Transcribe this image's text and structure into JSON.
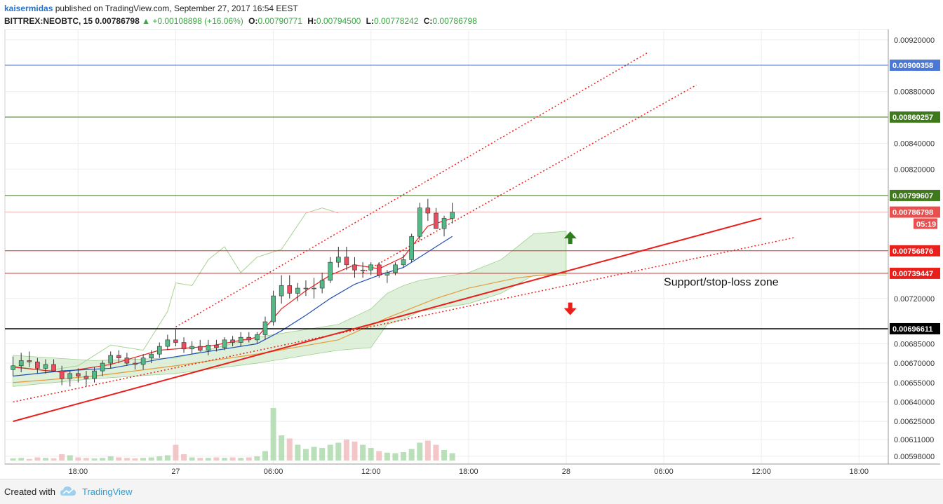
{
  "header": {
    "author": "kaisermidas",
    "published_text": "published on TradingView.com, September 27, 2017 16:54 EEST",
    "symbol": "BITTREX:NEOBTC, 15",
    "last": "0.00786798",
    "change": "+0.00108898 (+16.06%)",
    "o_label": "O:",
    "o": "0.00790771",
    "h_label": "H:",
    "h": "0.00794500",
    "l_label": "L:",
    "l": "0.00778242",
    "c_label": "C:",
    "c": "0.00786798",
    "arrow_icon": "triangle-up-icon"
  },
  "footer": {
    "created_with": "Created with",
    "brand": "TradingView",
    "logo_icon": "tradingview-cloud-icon"
  },
  "chart_data": {
    "type": "candlestick",
    "symbol": "BITTREX:NEOBTC",
    "interval": "15",
    "ylim": [
      0.00592,
      0.00928
    ],
    "x_ticks": [
      "18:00",
      "27",
      "06:00",
      "12:00",
      "18:00",
      "28",
      "06:00",
      "12:00",
      "18:00"
    ],
    "x_tick_values": [
      0.8,
      2.0,
      3.2,
      4.4,
      5.6,
      6.8,
      8.0,
      9.2,
      10.4
    ],
    "y_ticks": [
      "0.00920000",
      "0.00880000",
      "0.00840000",
      "0.00820000",
      "0.00720000",
      "0.00685000",
      "0.00670000",
      "0.00655000",
      "0.00640000",
      "0.00625000",
      "0.00611000",
      "0.00598000"
    ],
    "y_tick_values": [
      0.0092,
      0.0088,
      0.0084,
      0.0082,
      0.0072,
      0.00685,
      0.0067,
      0.00655,
      0.0064,
      0.00625,
      0.00611,
      0.00598
    ],
    "last_price": {
      "label": "0.00786798",
      "value": 0.00786798,
      "countdown": "05:19",
      "color": "#e8504f"
    },
    "horizontal_lines": [
      {
        "label": "0.00900358",
        "value": 0.00900358,
        "color": "#4a78d4"
      },
      {
        "label": "0.00860257",
        "value": 0.00860257,
        "color": "#3e7a1c"
      },
      {
        "label": "0.00799607",
        "value": 0.00799607,
        "color": "#3e7a1c"
      },
      {
        "label": "0.00756876",
        "value": 0.00756876,
        "color": "#e8201c"
      },
      {
        "label": "0.00739447",
        "value": 0.00739447,
        "color": "#e8201c"
      },
      {
        "label": "0.00696611",
        "value": 0.00696611,
        "color": "#000000"
      }
    ],
    "annotations": [
      {
        "text": "Support/stop-loss zone",
        "x": 8.0,
        "y": 0.0073
      }
    ],
    "arrows": [
      {
        "direction": "up",
        "x": 6.85,
        "y": 0.00767,
        "color": "#2e7d1e"
      },
      {
        "direction": "down",
        "x": 6.85,
        "y": 0.00712,
        "color": "#e8201c"
      }
    ],
    "trend_lines": [
      {
        "style": "solid",
        "color": "#e8201c",
        "x": [
          0.0,
          9.2
        ],
        "y": [
          0.00625,
          0.00782
        ]
      },
      {
        "style": "dotted",
        "color": "#e8201c",
        "x": [
          0.0,
          9.6
        ],
        "y": [
          0.0064,
          0.00767
        ]
      },
      {
        "style": "dotted",
        "color": "#e8201c",
        "x": [
          2.0,
          7.8
        ],
        "y": [
          0.00698,
          0.0091
        ]
      },
      {
        "style": "dotted",
        "color": "#e8201c",
        "x": [
          4.3,
          8.4
        ],
        "y": [
          0.0074,
          0.00885
        ]
      }
    ],
    "candles": {
      "x": [
        0.0,
        0.1,
        0.2,
        0.3,
        0.4,
        0.5,
        0.6,
        0.7,
        0.8,
        0.9,
        1.0,
        1.1,
        1.2,
        1.3,
        1.4,
        1.5,
        1.6,
        1.7,
        1.8,
        1.9,
        2.0,
        2.1,
        2.2,
        2.3,
        2.4,
        2.5,
        2.6,
        2.7,
        2.8,
        2.9,
        3.0,
        3.1,
        3.2,
        3.3,
        3.4,
        3.5,
        3.6,
        3.7,
        3.8,
        3.9,
        4.0,
        4.1,
        4.2,
        4.3,
        4.4,
        4.5,
        4.6,
        4.7,
        4.8,
        4.9,
        5.0,
        5.1,
        5.2,
        5.3,
        5.4
      ],
      "open": [
        0.00665,
        0.00668,
        0.00672,
        0.00671,
        0.00666,
        0.00669,
        0.00664,
        0.00658,
        0.00662,
        0.0066,
        0.00658,
        0.00664,
        0.0067,
        0.00676,
        0.00674,
        0.0067,
        0.00669,
        0.00674,
        0.00677,
        0.00683,
        0.00688,
        0.00686,
        0.00681,
        0.00683,
        0.0068,
        0.00684,
        0.00682,
        0.00688,
        0.00686,
        0.0069,
        0.00688,
        0.00692,
        0.00702,
        0.00722,
        0.0073,
        0.00724,
        0.00728,
        0.00728,
        0.00728,
        0.00734,
        0.00748,
        0.00752,
        0.00746,
        0.00742,
        0.00742,
        0.00746,
        0.00738,
        0.0074,
        0.00746,
        0.0075,
        0.00768,
        0.0079,
        0.00786,
        0.00774,
        0.00782
      ],
      "high": [
        0.00675,
        0.00678,
        0.00679,
        0.00674,
        0.00673,
        0.00673,
        0.00668,
        0.00664,
        0.00666,
        0.00664,
        0.00667,
        0.00672,
        0.00679,
        0.0068,
        0.00678,
        0.00674,
        0.00677,
        0.0068,
        0.00686,
        0.00692,
        0.00696,
        0.0069,
        0.00687,
        0.00688,
        0.00688,
        0.00688,
        0.0069,
        0.00691,
        0.00694,
        0.00694,
        0.00694,
        0.00706,
        0.00726,
        0.00738,
        0.00738,
        0.00732,
        0.00734,
        0.00736,
        0.0074,
        0.00752,
        0.0076,
        0.0076,
        0.00752,
        0.00748,
        0.00748,
        0.00748,
        0.00742,
        0.00748,
        0.00754,
        0.0077,
        0.00794,
        0.00797,
        0.0079,
        0.00784,
        0.00794
      ],
      "low": [
        0.0066,
        0.00663,
        0.00667,
        0.00662,
        0.00662,
        0.00663,
        0.00653,
        0.00652,
        0.00655,
        0.00652,
        0.00655,
        0.0066,
        0.00666,
        0.0067,
        0.00668,
        0.00665,
        0.00665,
        0.0067,
        0.00674,
        0.0068,
        0.00683,
        0.00678,
        0.00677,
        0.00679,
        0.00676,
        0.00679,
        0.0068,
        0.00683,
        0.00683,
        0.00686,
        0.00685,
        0.00688,
        0.00699,
        0.00716,
        0.0072,
        0.00718,
        0.00722,
        0.0072,
        0.00724,
        0.00732,
        0.00744,
        0.00742,
        0.00736,
        0.00736,
        0.00738,
        0.00736,
        0.00732,
        0.00738,
        0.00744,
        0.00748,
        0.00765,
        0.0078,
        0.00774,
        0.00768,
        0.00778
      ],
      "close": [
        0.00668,
        0.00672,
        0.00671,
        0.00666,
        0.00669,
        0.00664,
        0.00658,
        0.00662,
        0.0066,
        0.00658,
        0.00664,
        0.0067,
        0.00676,
        0.00674,
        0.0067,
        0.00669,
        0.00674,
        0.00677,
        0.00683,
        0.00688,
        0.00686,
        0.00681,
        0.00683,
        0.0068,
        0.00684,
        0.00682,
        0.00688,
        0.00686,
        0.0069,
        0.00688,
        0.00692,
        0.00702,
        0.00722,
        0.0073,
        0.00724,
        0.00728,
        0.00728,
        0.00728,
        0.00734,
        0.00748,
        0.00752,
        0.00746,
        0.00742,
        0.00742,
        0.00746,
        0.00738,
        0.0074,
        0.00746,
        0.0075,
        0.00768,
        0.0079,
        0.00786,
        0.00774,
        0.00782,
        0.00786798
      ]
    },
    "volume": {
      "max": 100,
      "values": [
        4,
        5,
        3,
        6,
        5,
        4,
        12,
        10,
        6,
        5,
        4,
        5,
        8,
        6,
        5,
        4,
        5,
        6,
        8,
        10,
        30,
        12,
        6,
        5,
        5,
        6,
        5,
        6,
        5,
        6,
        8,
        18,
        100,
        48,
        42,
        30,
        22,
        26,
        24,
        30,
        34,
        40,
        36,
        30,
        24,
        18,
        15,
        14,
        16,
        22,
        34,
        38,
        30,
        20,
        14
      ],
      "up_color": "#a7d8a7",
      "down_color": "#f0b9b9"
    },
    "moving_averages": [
      {
        "color": "#e8201c",
        "x": [
          0.0,
          0.6,
          1.2,
          1.8,
          2.4,
          3.0,
          3.3,
          3.6,
          3.9,
          4.2,
          4.5,
          4.8,
          5.1,
          5.4
        ],
        "y": [
          0.00667,
          0.00663,
          0.00669,
          0.0068,
          0.00683,
          0.0069,
          0.00712,
          0.00726,
          0.00738,
          0.00746,
          0.00743,
          0.00752,
          0.00776,
          0.00782
        ]
      },
      {
        "color": "#1f4fb8",
        "x": [
          0.0,
          0.6,
          1.2,
          1.8,
          2.4,
          3.0,
          3.3,
          3.6,
          3.9,
          4.2,
          4.5,
          4.8,
          5.1,
          5.4
        ],
        "y": [
          0.0066,
          0.00664,
          0.00666,
          0.00673,
          0.00679,
          0.00685,
          0.00695,
          0.00707,
          0.0072,
          0.00731,
          0.00738,
          0.00744,
          0.00756,
          0.00768
        ]
      },
      {
        "color": "#e69a3c",
        "x": [
          0.0,
          1.0,
          2.0,
          3.0,
          4.0,
          4.6,
          5.2,
          5.6,
          6.2,
          6.8
        ],
        "y": [
          0.00655,
          0.0066,
          0.00668,
          0.00677,
          0.00688,
          0.00705,
          0.0072,
          0.00728,
          0.00736,
          0.0074
        ]
      }
    ],
    "lagging_span": {
      "color": "#a7d28e",
      "x": [
        0.0,
        0.4,
        0.8,
        1.2,
        1.6,
        1.9,
        2.0,
        2.2,
        2.4,
        2.6,
        2.8,
        3.0,
        3.3,
        3.6,
        3.8,
        4.0
      ],
      "y": [
        0.00668,
        0.00664,
        0.00668,
        0.00684,
        0.0068,
        0.0071,
        0.00732,
        0.0073,
        0.0075,
        0.0076,
        0.0074,
        0.00752,
        0.00758,
        0.00786,
        0.0079,
        0.00786
      ]
    },
    "cloud": {
      "x": [
        0.0,
        1.0,
        2.0,
        3.0,
        4.0,
        4.4,
        4.6,
        4.8,
        5.0,
        5.6,
        6.0,
        6.4,
        6.8
      ],
      "upper": [
        0.00676,
        0.00672,
        0.00674,
        0.0069,
        0.007,
        0.00712,
        0.00724,
        0.0073,
        0.00734,
        0.0074,
        0.0075,
        0.0077,
        0.00772
      ],
      "lower": [
        0.00652,
        0.00658,
        0.00662,
        0.0067,
        0.0068,
        0.00682,
        0.007,
        0.00704,
        0.0071,
        0.00716,
        0.00724,
        0.00738,
        0.00738
      ],
      "color": "#c8e6c0"
    }
  }
}
